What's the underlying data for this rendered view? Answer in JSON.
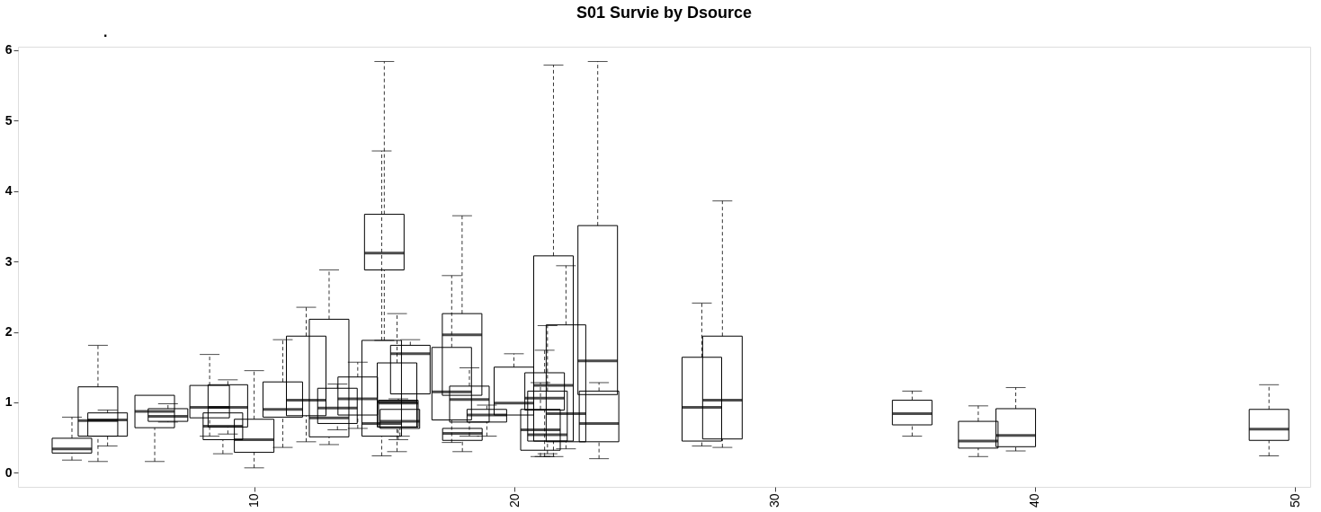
{
  "chart_data": {
    "type": "box",
    "title": "S01 Survie by  Dsource",
    "annotations": [
      "."
    ],
    "x": [
      3.0,
      4.0,
      4.37,
      6.18,
      6.69,
      8.29,
      8.99,
      8.8,
      10.0,
      11.1,
      12.0,
      12.88,
      13.2,
      13.98,
      15.0,
      14.9,
      15.49,
      16.0,
      15.54,
      15.6,
      17.99,
      17.59,
      18.0,
      18.27,
      18.94,
      19.98,
      21.5,
      23.2,
      21.98,
      21.16,
      21.0,
      21.27,
      23.25,
      27.2,
      27.99,
      35.28,
      37.82,
      39.26,
      48.99
    ],
    "boxes": [
      {
        "low": 0.18,
        "q1": 0.28,
        "median": 0.34,
        "q3": 0.49,
        "high": 0.79
      },
      {
        "low": 0.16,
        "q1": 0.52,
        "median": 0.74,
        "q3": 1.22,
        "high": 1.81
      },
      {
        "low": 0.38,
        "q1": 0.52,
        "median": 0.75,
        "q3": 0.85,
        "high": 0.89
      },
      {
        "low": 0.16,
        "q1": 0.64,
        "median": 0.87,
        "q3": 1.1,
        "high": 1.1
      },
      {
        "low": 0.72,
        "q1": 0.73,
        "median": 0.8,
        "q3": 0.91,
        "high": 0.98
      },
      {
        "low": 0.52,
        "q1": 0.78,
        "median": 0.93,
        "q3": 1.24,
        "high": 1.68
      },
      {
        "low": 0.55,
        "q1": 0.65,
        "median": 0.93,
        "q3": 1.25,
        "high": 1.32
      },
      {
        "low": 0.27,
        "q1": 0.47,
        "median": 0.66,
        "q3": 0.85,
        "high": 0.85
      },
      {
        "low": 0.07,
        "q1": 0.29,
        "median": 0.47,
        "q3": 0.76,
        "high": 1.45
      },
      {
        "low": 0.36,
        "q1": 0.79,
        "median": 0.9,
        "q3": 1.29,
        "high": 1.89
      },
      {
        "low": 0.44,
        "q1": 0.81,
        "median": 1.03,
        "q3": 1.94,
        "high": 2.35
      },
      {
        "low": 0.4,
        "q1": 0.51,
        "median": 0.78,
        "q3": 2.18,
        "high": 2.88
      },
      {
        "low": 0.61,
        "q1": 0.7,
        "median": 0.92,
        "q3": 1.2,
        "high": 1.26
      },
      {
        "low": 0.63,
        "q1": 0.82,
        "median": 1.05,
        "q3": 1.36,
        "high": 1.57
      },
      {
        "low": 1.88,
        "q1": 2.88,
        "median": 3.12,
        "q3": 3.67,
        "high": 5.84
      },
      {
        "low": 0.24,
        "q1": 0.52,
        "median": 0.7,
        "q3": 1.88,
        "high": 4.57
      },
      {
        "low": 0.3,
        "q1": 0.65,
        "median": 1.01,
        "q3": 1.56,
        "high": 2.26
      },
      {
        "low": 1.12,
        "q1": 1.12,
        "median": 1.69,
        "q3": 1.81,
        "high": 1.89
      },
      {
        "low": 0.47,
        "q1": 0.65,
        "median": 0.99,
        "q3": 1.03,
        "high": 1.05
      },
      {
        "low": 0.52,
        "q1": 0.63,
        "median": 0.73,
        "q3": 0.9,
        "high": 0.9
      },
      {
        "low": 1.1,
        "q1": 1.1,
        "median": 1.96,
        "q3": 2.26,
        "high": 3.65
      },
      {
        "low": 0.43,
        "q1": 0.75,
        "median": 1.15,
        "q3": 1.78,
        "high": 2.8
      },
      {
        "low": 0.3,
        "q1": 0.46,
        "median": 0.56,
        "q3": 0.63,
        "high": 0.63
      },
      {
        "low": 0.52,
        "q1": 0.72,
        "median": 1.04,
        "q3": 1.23,
        "high": 1.49
      },
      {
        "low": 0.52,
        "q1": 0.72,
        "median": 0.82,
        "q3": 0.9,
        "high": 0.96
      },
      {
        "low": 0.82,
        "q1": 0.82,
        "median": 0.99,
        "q3": 1.5,
        "high": 1.69
      },
      {
        "low": 0.23,
        "q1": 0.45,
        "median": 1.24,
        "q3": 3.08,
        "high": 5.79
      },
      {
        "low": 1.11,
        "q1": 1.11,
        "median": 1.59,
        "q3": 3.51,
        "high": 5.84
      },
      {
        "low": 0.34,
        "q1": 0.44,
        "median": 0.84,
        "q3": 2.1,
        "high": 2.94
      },
      {
        "low": 0.23,
        "q1": 0.89,
        "median": 1.06,
        "q3": 1.42,
        "high": 1.74
      },
      {
        "low": 0.23,
        "q1": 0.32,
        "median": 0.61,
        "q3": 0.9,
        "high": 1.28
      },
      {
        "low": 0.27,
        "q1": 0.45,
        "median": 0.54,
        "q3": 1.16,
        "high": 2.09
      },
      {
        "low": 0.2,
        "q1": 0.44,
        "median": 0.7,
        "q3": 1.16,
        "high": 1.28
      },
      {
        "low": 0.38,
        "q1": 0.45,
        "median": 0.93,
        "q3": 1.64,
        "high": 2.41
      },
      {
        "low": 0.36,
        "q1": 0.48,
        "median": 1.03,
        "q3": 1.94,
        "high": 3.86
      },
      {
        "low": 0.52,
        "q1": 0.68,
        "median": 0.84,
        "q3": 1.03,
        "high": 1.16
      },
      {
        "low": 0.23,
        "q1": 0.35,
        "median": 0.45,
        "q3": 0.73,
        "high": 0.95
      },
      {
        "low": 0.31,
        "q1": 0.37,
        "median": 0.53,
        "q3": 0.91,
        "high": 1.21
      },
      {
        "low": 0.24,
        "q1": 0.46,
        "median": 0.62,
        "q3": 0.9,
        "high": 1.25
      }
    ],
    "xlim": [
      1.1,
      50.4
    ],
    "ylim": [
      -0.2,
      6.05
    ],
    "xticks": [
      10,
      20,
      30,
      40,
      50
    ],
    "yticks": [
      0,
      1,
      2,
      3,
      4,
      5,
      6
    ]
  }
}
